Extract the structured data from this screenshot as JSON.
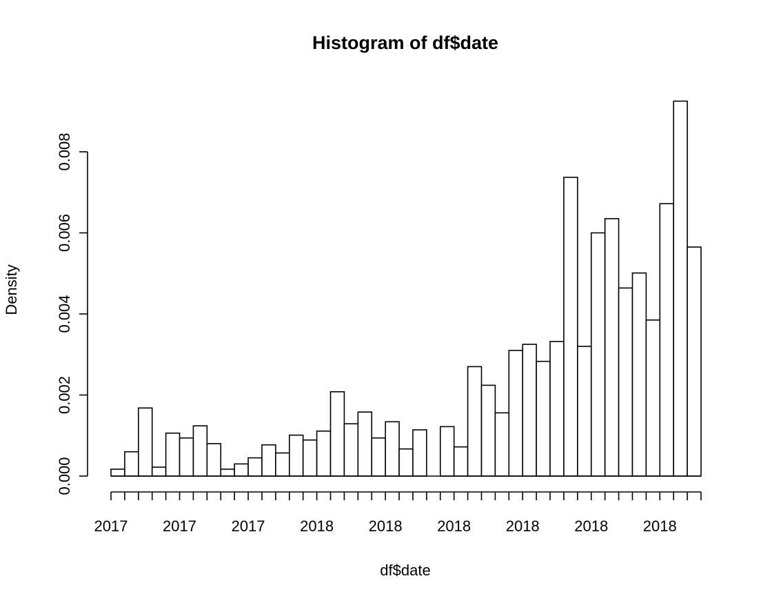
{
  "chart_data": {
    "type": "bar",
    "title": "Histogram of df$date",
    "xlabel": "df$date",
    "ylabel": "Density",
    "ylim": [
      0,
      0.0092
    ],
    "yticks": [
      "0.000",
      "0.002",
      "0.004",
      "0.006",
      "0.008"
    ],
    "ytick_values": [
      0,
      0.002,
      0.004,
      0.006,
      0.008
    ],
    "xtick_labels": [
      "2017",
      "2017",
      "2017",
      "2018",
      "2018",
      "2018",
      "2018",
      "2018",
      "2018"
    ],
    "bin_count": 43,
    "values": [
      0.00017,
      0.0006,
      0.00168,
      0.00022,
      0.00106,
      0.00094,
      0.00124,
      0.0008,
      0.00017,
      0.0003,
      0.00045,
      0.00077,
      0.00057,
      0.00101,
      0.00089,
      0.00111,
      0.00208,
      0.00129,
      0.00158,
      0.00094,
      0.00134,
      0.00067,
      0.00114,
      0,
      0.00122,
      0.00072,
      0.0027,
      0.00224,
      0.00156,
      0.0031,
      0.00325,
      0.00283,
      0.00332,
      0.00737,
      0.0032,
      0.006,
      0.00635,
      0.00464,
      0.00501,
      0.00385,
      0.00672,
      0.00925,
      0.00565
    ],
    "grid": false,
    "legend": "none"
  }
}
